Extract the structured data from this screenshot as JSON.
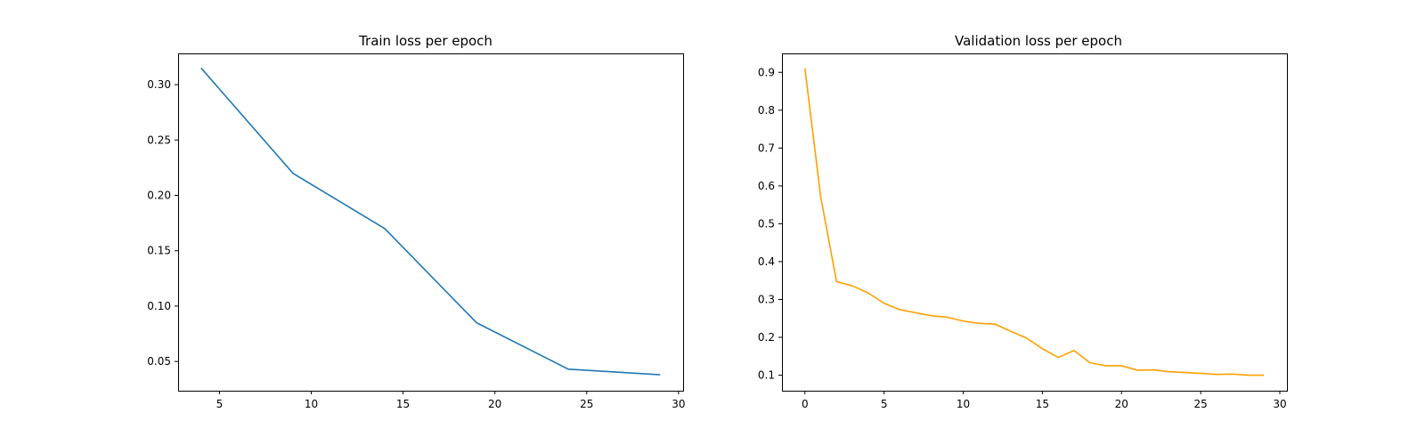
{
  "chart_data": [
    {
      "type": "line",
      "title": "Train loss per epoch",
      "xlabel": "",
      "ylabel": "",
      "xlim": [
        2.75,
        30.25
      ],
      "ylim": [
        0.0236,
        0.3282
      ],
      "xticks": [
        5,
        10,
        15,
        20,
        25,
        30
      ],
      "yticks": [
        0.05,
        0.1,
        0.15,
        0.2,
        0.25,
        0.3
      ],
      "ytick_labels": [
        "0.05",
        "0.10",
        "0.15",
        "0.20",
        "0.25",
        "0.30"
      ],
      "grid": false,
      "series": [
        {
          "color": "#1f77b4",
          "x": [
            4,
            9,
            14,
            19,
            24,
            29
          ],
          "y": [
            0.315,
            0.22,
            0.17,
            0.085,
            0.043,
            0.038
          ]
        }
      ]
    },
    {
      "type": "line",
      "title": "Validation loss per epoch",
      "xlabel": "",
      "ylabel": "",
      "xlim": [
        -1.45,
        30.45
      ],
      "ylim": [
        0.059,
        0.95
      ],
      "xticks": [
        0,
        5,
        10,
        15,
        20,
        25,
        30
      ],
      "yticks": [
        0.1,
        0.2,
        0.3,
        0.4,
        0.5,
        0.6,
        0.7,
        0.8,
        0.9
      ],
      "ytick_labels": [
        "0.1",
        "0.2",
        "0.3",
        "0.4",
        "0.5",
        "0.6",
        "0.7",
        "0.8",
        "0.9"
      ],
      "grid": false,
      "series": [
        {
          "color": "#ff9f00",
          "x": [
            0,
            1,
            2,
            3,
            4,
            5,
            6,
            7,
            8,
            9,
            10,
            11,
            12,
            13,
            14,
            15,
            16,
            17,
            18,
            19,
            20,
            21,
            22,
            23,
            24,
            25,
            26,
            27,
            28,
            29
          ],
          "y": [
            0.91,
            0.57,
            0.347,
            0.336,
            0.317,
            0.29,
            0.273,
            0.265,
            0.257,
            0.253,
            0.243,
            0.237,
            0.235,
            0.216,
            0.198,
            0.17,
            0.147,
            0.165,
            0.133,
            0.125,
            0.125,
            0.113,
            0.114,
            0.109,
            0.107,
            0.105,
            0.102,
            0.103,
            0.1,
            0.1
          ]
        }
      ]
    }
  ]
}
